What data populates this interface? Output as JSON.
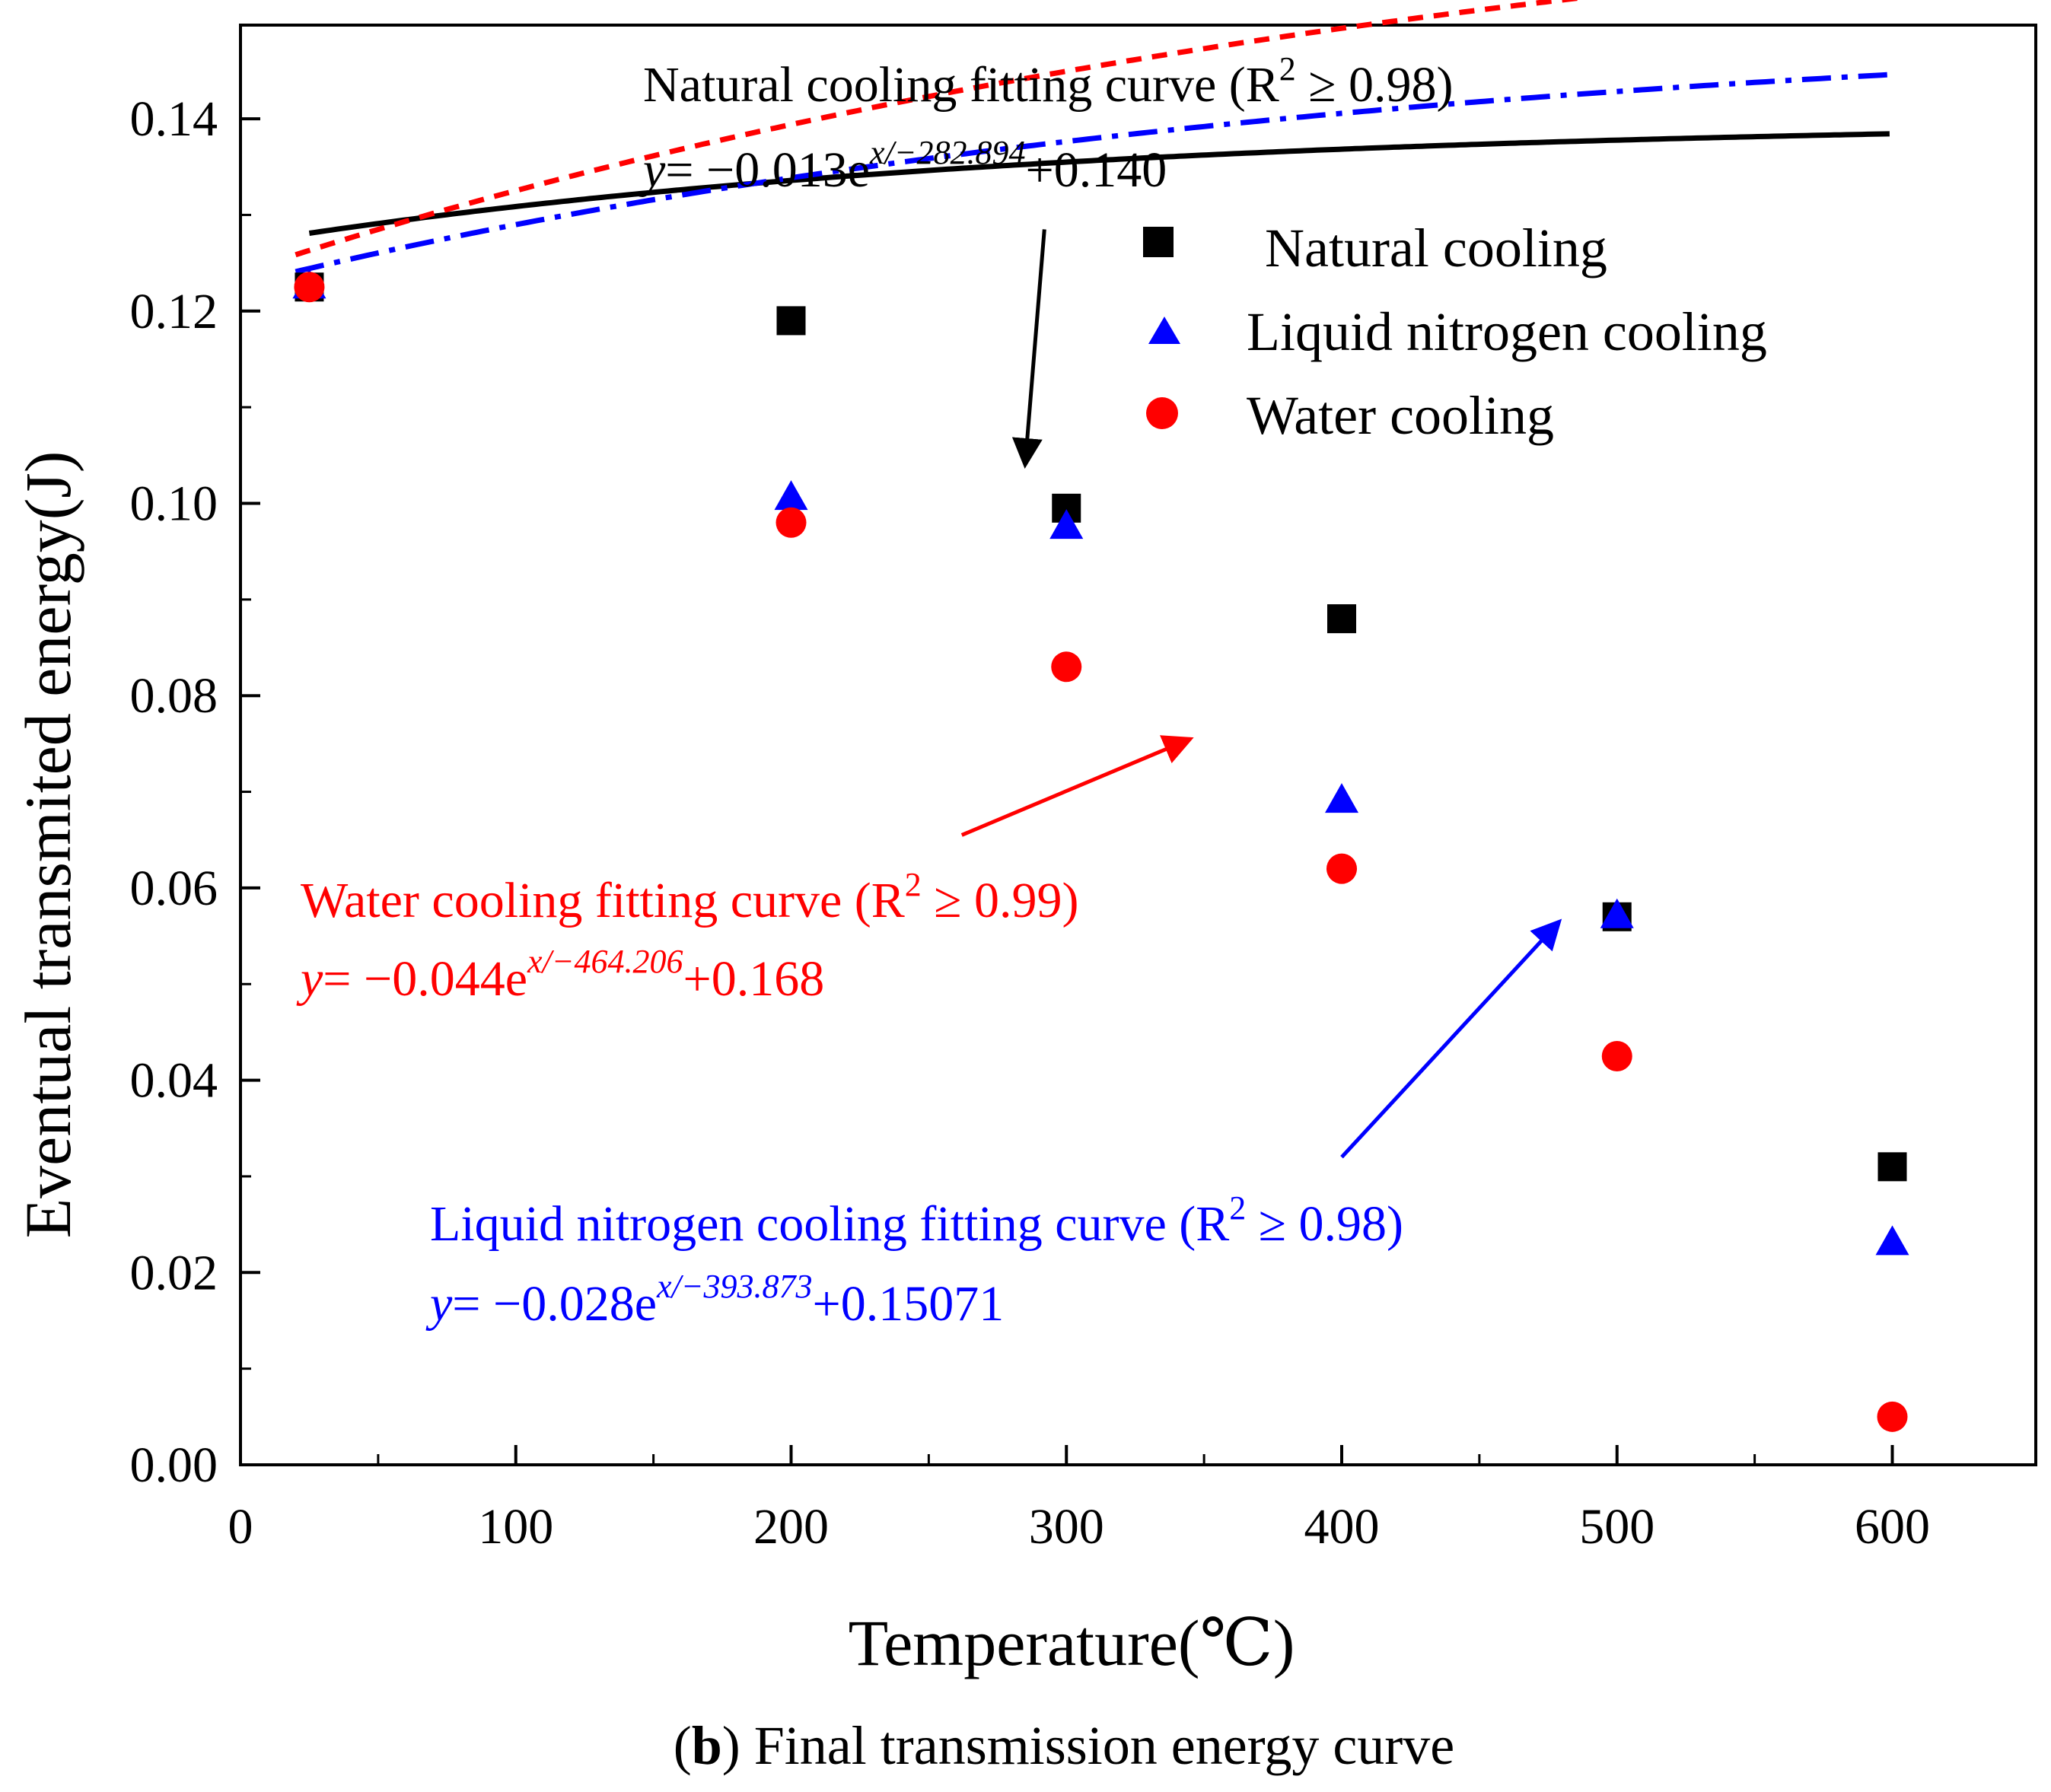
{
  "chart_data": {
    "type": "scatter",
    "title": "",
    "xlabel": "Temperature(℃)",
    "ylabel": "Eventual transmited energy(J)",
    "xlim": [
      0,
      650
    ],
    "ylim": [
      0,
      0.15
    ],
    "x_ticks": [
      0,
      100,
      200,
      300,
      400,
      500,
      600
    ],
    "x_tick_labels": [
      "0",
      "100",
      "200",
      "300",
      "400",
      "500",
      "600"
    ],
    "y_ticks": [
      0,
      0.02,
      0.04,
      0.06,
      0.08,
      0.1,
      0.12,
      0.14
    ],
    "y_tick_labels": [
      "0.00",
      "0.02",
      "0.04",
      "0.06",
      "0.08",
      "0.10",
      "0.12",
      "0.14"
    ],
    "grid": false,
    "legend_position": "top-right",
    "series": [
      {
        "name": "Natural cooling",
        "marker": "square",
        "color": "#000000",
        "x": [
          25,
          200,
          300,
          400,
          500,
          600
        ],
        "y": [
          0.1225,
          0.119,
          0.0995,
          0.088,
          0.057,
          0.031
        ],
        "fit": {
          "a": -0.013,
          "t": -282.894,
          "c": 0.14,
          "style": "solid",
          "x_range": [
            25,
            600
          ]
        }
      },
      {
        "name": "Liquid nitrogen cooling",
        "marker": "triangle",
        "color": "#0000ff",
        "x": [
          25,
          200,
          300,
          400,
          500,
          600
        ],
        "y": [
          0.1225,
          0.1005,
          0.0975,
          0.069,
          0.057,
          0.023
        ],
        "fit": {
          "a": -0.028,
          "t": -393.873,
          "c": 0.15071,
          "style": "dashdot",
          "x_range": [
            20,
            600
          ]
        }
      },
      {
        "name": "Water cooling",
        "marker": "circle",
        "color": "#ff0000",
        "x": [
          25,
          200,
          300,
          400,
          500,
          600
        ],
        "y": [
          0.1225,
          0.098,
          0.083,
          0.062,
          0.0425,
          0.005
        ],
        "fit": {
          "a": -0.044,
          "t": -464.206,
          "c": 0.168,
          "style": "dashed",
          "x_range": [
            20,
            600
          ]
        }
      }
    ],
    "annotations": [
      {
        "id": "natural",
        "color": "#000000",
        "title": "Natural cooling fitting curve (R",
        "r2_suffix": " ≥ 0.98)",
        "eq_y": "y",
        "eq_main": "= −0.013e",
        "eq_exp": "x/−282.894",
        "eq_const": "+0.140",
        "arrow_target": [
          285,
          0.104
        ],
        "arrow_from": [
          292,
          0.1285
        ]
      },
      {
        "id": "water",
        "color": "#ff0000",
        "title": "Water cooling fitting curve  (R",
        "r2_suffix": " ≥ 0.99)",
        "eq_y": "y",
        "eq_main": "= −0.044e",
        "eq_exp": "x/−464.206",
        "eq_const": "+0.168",
        "arrow_target": [
          345,
          0.0755
        ],
        "arrow_from": [
          262,
          0.0655
        ]
      },
      {
        "id": "nitrogen",
        "color": "#0000ff",
        "title": "Liquid nitrogen cooling fitting curve (R",
        "r2_suffix": " ≥ 0.98)",
        "eq_y": "y",
        "eq_main": "= −0.028e",
        "eq_exp": "x/−393.873",
        "eq_const": "+0.15071",
        "arrow_target": [
          479,
          0.0565
        ],
        "arrow_from": [
          400,
          0.032
        ]
      }
    ],
    "r2_superscript": "2"
  },
  "caption": {
    "prefix": "(",
    "bold": "b",
    "text": ") Final transmission energy curve"
  }
}
